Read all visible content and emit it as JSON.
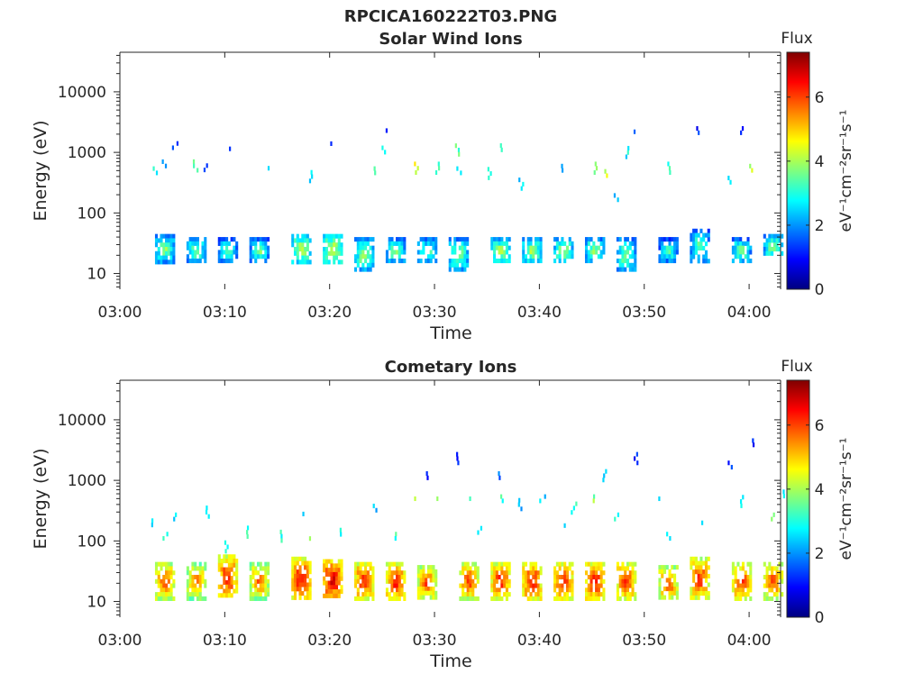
{
  "figure_title": "RPCICA160222T03.PNG",
  "colorbar": {
    "title": "Flux",
    "label": "eV⁻¹cm⁻²sr⁻¹s⁻¹",
    "ticks": [
      "0",
      "2",
      "4",
      "6"
    ],
    "range": [
      0,
      7.4
    ],
    "colormap": "jet",
    "colors": [
      "#00007f",
      "#0000ff",
      "#007fff",
      "#00ffff",
      "#7fff7f",
      "#ffff00",
      "#ff7f00",
      "#ff0000",
      "#7f0000"
    ]
  },
  "chart_data": [
    {
      "type": "heatmap",
      "title": "Solar Wind Ions",
      "xlabel": "Time",
      "ylabel": "Energy (eV)",
      "yscale": "log",
      "x_range": [
        "03:00",
        "04:03"
      ],
      "ylim": [
        5.5,
        45000
      ],
      "xticks": [
        "03:00",
        "03:10",
        "03:20",
        "03:30",
        "03:40",
        "03:50",
        "04:00"
      ],
      "yticks": [
        "10",
        "100",
        "1000",
        "10000"
      ],
      "clusters": [
        {
          "t": "03:04",
          "e_low": 16,
          "e_high": 45,
          "flux": 4.0
        },
        {
          "t": "03:07",
          "e_low": 16,
          "e_high": 40,
          "flux": 3.9
        },
        {
          "t": "03:10",
          "e_low": 16,
          "e_high": 40,
          "flux": 3.7
        },
        {
          "t": "03:13",
          "e_low": 16,
          "e_high": 40,
          "flux": 3.8
        },
        {
          "t": "03:17",
          "e_low": 16,
          "e_high": 45,
          "flux": 4.5
        },
        {
          "t": "03:20",
          "e_low": 16,
          "e_high": 45,
          "flux": 4.7
        },
        {
          "t": "03:23",
          "e_low": 12,
          "e_high": 40,
          "flux": 4.1
        },
        {
          "t": "03:26",
          "e_low": 16,
          "e_high": 40,
          "flux": 4.0
        },
        {
          "t": "03:29",
          "e_low": 16,
          "e_high": 40,
          "flux": 3.9
        },
        {
          "t": "03:32",
          "e_low": 12,
          "e_high": 40,
          "flux": 4.1
        },
        {
          "t": "03:36",
          "e_low": 16,
          "e_high": 40,
          "flux": 4.4
        },
        {
          "t": "03:39",
          "e_low": 16,
          "e_high": 40,
          "flux": 4.3
        },
        {
          "t": "03:42",
          "e_low": 16,
          "e_high": 40,
          "flux": 4.2
        },
        {
          "t": "03:45",
          "e_low": 16,
          "e_high": 40,
          "flux": 4.1
        },
        {
          "t": "03:48",
          "e_low": 12,
          "e_high": 40,
          "flux": 4.0
        },
        {
          "t": "03:52",
          "e_low": 16,
          "e_high": 40,
          "flux": 3.6
        },
        {
          "t": "03:55",
          "e_low": 16,
          "e_high": 55,
          "flux": 3.8
        },
        {
          "t": "03:59",
          "e_low": 16,
          "e_high": 40,
          "flux": 3.9
        },
        {
          "t": "04:02",
          "e_low": 20,
          "e_high": 45,
          "flux": 4.1
        }
      ],
      "sparse_high_energy": [
        {
          "t": "03:03",
          "e": 500,
          "flux": 3.0
        },
        {
          "t": "03:04",
          "e": 650,
          "flux": 2.2
        },
        {
          "t": "03:05",
          "e": 1300,
          "flux": 1.2
        },
        {
          "t": "03:07",
          "e": 600,
          "flux": 3.4
        },
        {
          "t": "03:08",
          "e": 560,
          "flux": 1.6
        },
        {
          "t": "03:10",
          "e": 1150,
          "flux": 1.3
        },
        {
          "t": "03:14",
          "e": 550,
          "flux": 2.4
        },
        {
          "t": "03:18",
          "e": 400,
          "flux": 2.5
        },
        {
          "t": "03:20",
          "e": 1400,
          "flux": 1.2
        },
        {
          "t": "03:24",
          "e": 500,
          "flux": 3.8
        },
        {
          "t": "03:25",
          "e": 1100,
          "flux": 3.0
        },
        {
          "t": "03:25",
          "e": 2300,
          "flux": 1.3
        },
        {
          "t": "03:28",
          "e": 550,
          "flux": 4.4
        },
        {
          "t": "03:30",
          "e": 550,
          "flux": 3.0
        },
        {
          "t": "03:32",
          "e": 1100,
          "flux": 3.4
        },
        {
          "t": "03:32",
          "e": 500,
          "flux": 2.6
        },
        {
          "t": "03:35",
          "e": 450,
          "flux": 2.8
        },
        {
          "t": "03:36",
          "e": 1200,
          "flux": 3.2
        },
        {
          "t": "03:38",
          "e": 300,
          "flux": 2.6
        },
        {
          "t": "03:42",
          "e": 550,
          "flux": 2.4
        },
        {
          "t": "03:45",
          "e": 550,
          "flux": 3.6
        },
        {
          "t": "03:46",
          "e": 450,
          "flux": 4.2
        },
        {
          "t": "03:47",
          "e": 180,
          "flux": 2.5
        },
        {
          "t": "03:48",
          "e": 1000,
          "flux": 2.8
        },
        {
          "t": "03:49",
          "e": 2200,
          "flux": 1.3
        },
        {
          "t": "03:52",
          "e": 550,
          "flux": 3.0
        },
        {
          "t": "03:55",
          "e": 2300,
          "flux": 1.2
        },
        {
          "t": "03:58",
          "e": 350,
          "flux": 2.5
        },
        {
          "t": "03:59",
          "e": 2300,
          "flux": 1.2
        },
        {
          "t": "04:00",
          "e": 550,
          "flux": 4.2
        }
      ]
    },
    {
      "type": "heatmap",
      "title": "Cometary Ions",
      "xlabel": "Time",
      "ylabel": "Energy (eV)",
      "yscale": "log",
      "x_range": [
        "03:00",
        "04:03"
      ],
      "ylim": [
        5.5,
        45000
      ],
      "xticks": [
        "03:00",
        "03:10",
        "03:20",
        "03:30",
        "03:40",
        "03:50",
        "04:00"
      ],
      "yticks": [
        "10",
        "100",
        "1000",
        "10000"
      ],
      "clusters": [
        {
          "t": "03:04",
          "e_low": 12,
          "e_high": 45,
          "flux": 6.2
        },
        {
          "t": "03:07",
          "e_low": 12,
          "e_high": 45,
          "flux": 5.8
        },
        {
          "t": "03:10",
          "e_low": 12,
          "e_high": 60,
          "flux": 6.5
        },
        {
          "t": "03:13",
          "e_low": 12,
          "e_high": 45,
          "flux": 5.9
        },
        {
          "t": "03:17",
          "e_low": 12,
          "e_high": 55,
          "flux": 6.7
        },
        {
          "t": "03:20",
          "e_low": 12,
          "e_high": 50,
          "flux": 6.9
        },
        {
          "t": "03:23",
          "e_low": 12,
          "e_high": 45,
          "flux": 6.5
        },
        {
          "t": "03:26",
          "e_low": 12,
          "e_high": 45,
          "flux": 6.6
        },
        {
          "t": "03:29",
          "e_low": 12,
          "e_high": 40,
          "flux": 6.2
        },
        {
          "t": "03:33",
          "e_low": 12,
          "e_high": 45,
          "flux": 6.3
        },
        {
          "t": "03:36",
          "e_low": 12,
          "e_high": 45,
          "flux": 6.5
        },
        {
          "t": "03:39",
          "e_low": 12,
          "e_high": 45,
          "flux": 6.6
        },
        {
          "t": "03:42",
          "e_low": 12,
          "e_high": 45,
          "flux": 6.6
        },
        {
          "t": "03:45",
          "e_low": 12,
          "e_high": 45,
          "flux": 6.7
        },
        {
          "t": "03:48",
          "e_low": 12,
          "e_high": 45,
          "flux": 6.5
        },
        {
          "t": "03:52",
          "e_low": 12,
          "e_high": 40,
          "flux": 6.1
        },
        {
          "t": "03:55",
          "e_low": 12,
          "e_high": 55,
          "flux": 6.4
        },
        {
          "t": "03:59",
          "e_low": 12,
          "e_high": 45,
          "flux": 6.4
        },
        {
          "t": "04:02",
          "e_low": 12,
          "e_high": 45,
          "flux": 6.2
        }
      ],
      "sparse_high_energy": [
        {
          "t": "03:03",
          "e": 200,
          "flux": 2.4
        },
        {
          "t": "03:04",
          "e": 120,
          "flux": 3.0
        },
        {
          "t": "03:05",
          "e": 250,
          "flux": 2.5
        },
        {
          "t": "03:08",
          "e": 300,
          "flux": 2.5
        },
        {
          "t": "03:10",
          "e": 80,
          "flux": 3.2
        },
        {
          "t": "03:12",
          "e": 140,
          "flux": 3.0
        },
        {
          "t": "03:15",
          "e": 120,
          "flux": 3.1
        },
        {
          "t": "03:17",
          "e": 280,
          "flux": 2.6
        },
        {
          "t": "03:18",
          "e": 110,
          "flux": 3.6
        },
        {
          "t": "03:21",
          "e": 140,
          "flux": 3.0
        },
        {
          "t": "03:24",
          "e": 350,
          "flux": 2.4
        },
        {
          "t": "03:26",
          "e": 120,
          "flux": 3.1
        },
        {
          "t": "03:28",
          "e": 500,
          "flux": 4.1
        },
        {
          "t": "03:29",
          "e": 1200,
          "flux": 1.3
        },
        {
          "t": "03:30",
          "e": 500,
          "flux": 3.6
        },
        {
          "t": "03:32",
          "e": 2300,
          "flux": 1.2
        },
        {
          "t": "03:33",
          "e": 500,
          "flux": 3.3
        },
        {
          "t": "03:34",
          "e": 150,
          "flux": 2.6
        },
        {
          "t": "03:36",
          "e": 1200,
          "flux": 1.6
        },
        {
          "t": "03:36",
          "e": 500,
          "flux": 3.2
        },
        {
          "t": "03:38",
          "e": 400,
          "flux": 2.2
        },
        {
          "t": "03:40",
          "e": 500,
          "flux": 2.4
        },
        {
          "t": "03:42",
          "e": 180,
          "flux": 2.8
        },
        {
          "t": "03:43",
          "e": 350,
          "flux": 3.0
        },
        {
          "t": "03:45",
          "e": 500,
          "flux": 3.8
        },
        {
          "t": "03:46",
          "e": 1200,
          "flux": 2.6
        },
        {
          "t": "03:47",
          "e": 250,
          "flux": 3.0
        },
        {
          "t": "03:49",
          "e": 2300,
          "flux": 1.2
        },
        {
          "t": "03:51",
          "e": 500,
          "flux": 2.6
        },
        {
          "t": "03:52",
          "e": 120,
          "flux": 2.8
        },
        {
          "t": "03:55",
          "e": 200,
          "flux": 2.7
        },
        {
          "t": "03:58",
          "e": 1800,
          "flux": 1.2
        },
        {
          "t": "03:59",
          "e": 450,
          "flux": 3.0
        },
        {
          "t": "04:00",
          "e": 4200,
          "flux": 1.0
        },
        {
          "t": "04:02",
          "e": 250,
          "flux": 3.4
        },
        {
          "t": "04:03",
          "e": 600,
          "flux": 2.4
        }
      ]
    }
  ]
}
